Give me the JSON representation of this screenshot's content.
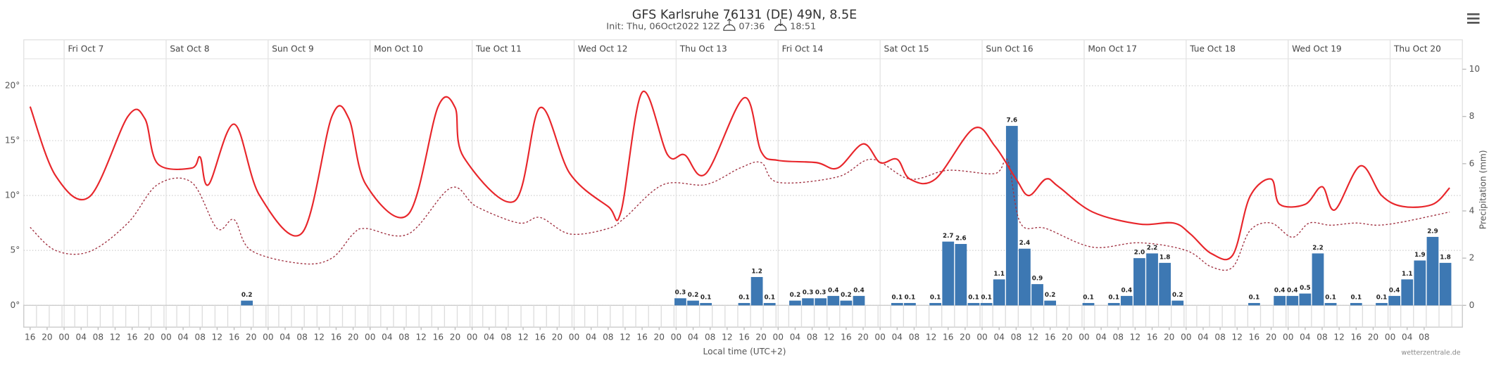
{
  "chart_data": {
    "type": "meteogram",
    "title": "GFS Karlsruhe 76131 (DE) 49N, 8.5E",
    "subtitle": "Init: Thu, 06Oct2022 12Z",
    "sunrise": "07:36",
    "sunset": "18:51",
    "xlabel": "Local time (UTC+2)",
    "y2label": "Precipitation (mm)",
    "credit": "wetterzentrale.de",
    "xlim": [
      -1.5,
      337
    ],
    "ylim": [
      0,
      21.5
    ],
    "yticks": [
      {
        "value": 0,
        "label": "0°"
      },
      {
        "value": 5,
        "label": "5°"
      },
      {
        "value": 10,
        "label": "10°"
      },
      {
        "value": 15,
        "label": "15°"
      },
      {
        "value": 20,
        "label": "20°"
      }
    ],
    "y2lim": [
      0,
      10
    ],
    "y2ticks": [
      0,
      2,
      4,
      6,
      8,
      10
    ],
    "grid": true,
    "day_labels": [
      "Fri Oct 7",
      "Sat Oct 8",
      "Sun Oct 9",
      "Mon Oct 10",
      "Tue Oct 11",
      "Wed Oct 12",
      "Thu Oct 13",
      "Fri Oct 14",
      "Sat Oct 15",
      "Sun Oct 16",
      "Mon Oct 17",
      "Tue Oct 18",
      "Wed Oct 19",
      "Thu Oct 20"
    ],
    "day_starts": [
      8,
      32,
      56,
      80,
      104,
      128,
      152,
      176,
      200,
      224,
      248,
      272,
      296,
      320
    ],
    "xticks": [
      {
        "value": 0,
        "label": "16"
      },
      {
        "value": 4,
        "label": "20"
      },
      {
        "value": 8,
        "label": "00"
      },
      {
        "value": 12,
        "label": "04"
      },
      {
        "value": 16,
        "label": "08"
      },
      {
        "value": 20,
        "label": "12"
      },
      {
        "value": 24,
        "label": "16"
      },
      {
        "value": 28,
        "label": "20"
      },
      {
        "value": 32,
        "label": "00"
      },
      {
        "value": 36,
        "label": "04"
      },
      {
        "value": 40,
        "label": "08"
      },
      {
        "value": 44,
        "label": "12"
      },
      {
        "value": 48,
        "label": "16"
      },
      {
        "value": 52,
        "label": "20"
      },
      {
        "value": 56,
        "label": "00"
      },
      {
        "value": 60,
        "label": "04"
      },
      {
        "value": 64,
        "label": "08"
      },
      {
        "value": 68,
        "label": "12"
      },
      {
        "value": 72,
        "label": "16"
      },
      {
        "value": 76,
        "label": "20"
      },
      {
        "value": 80,
        "label": "00"
      },
      {
        "value": 84,
        "label": "04"
      },
      {
        "value": 88,
        "label": "08"
      },
      {
        "value": 92,
        "label": "12"
      },
      {
        "value": 96,
        "label": "16"
      },
      {
        "value": 100,
        "label": "20"
      },
      {
        "value": 104,
        "label": "00"
      },
      {
        "value": 108,
        "label": "04"
      },
      {
        "value": 112,
        "label": "08"
      },
      {
        "value": 116,
        "label": "12"
      },
      {
        "value": 120,
        "label": "16"
      },
      {
        "value": 124,
        "label": "20"
      },
      {
        "value": 128,
        "label": "00"
      },
      {
        "value": 132,
        "label": "04"
      },
      {
        "value": 136,
        "label": "08"
      },
      {
        "value": 140,
        "label": "12"
      },
      {
        "value": 144,
        "label": "16"
      },
      {
        "value": 148,
        "label": "20"
      },
      {
        "value": 152,
        "label": "00"
      },
      {
        "value": 156,
        "label": "04"
      },
      {
        "value": 160,
        "label": "08"
      },
      {
        "value": 164,
        "label": "12"
      },
      {
        "value": 168,
        "label": "16"
      },
      {
        "value": 172,
        "label": "20"
      },
      {
        "value": 176,
        "label": "00"
      },
      {
        "value": 180,
        "label": "04"
      },
      {
        "value": 184,
        "label": "08"
      },
      {
        "value": 188,
        "label": "12"
      },
      {
        "value": 192,
        "label": "16"
      },
      {
        "value": 196,
        "label": "20"
      },
      {
        "value": 200,
        "label": "00"
      },
      {
        "value": 204,
        "label": "04"
      },
      {
        "value": 208,
        "label": "08"
      },
      {
        "value": 212,
        "label": "12"
      },
      {
        "value": 216,
        "label": "16"
      },
      {
        "value": 220,
        "label": "20"
      },
      {
        "value": 224,
        "label": "00"
      },
      {
        "value": 228,
        "label": "04"
      },
      {
        "value": 232,
        "label": "08"
      },
      {
        "value": 236,
        "label": "12"
      },
      {
        "value": 240,
        "label": "16"
      },
      {
        "value": 244,
        "label": "20"
      },
      {
        "value": 248,
        "label": "00"
      },
      {
        "value": 252,
        "label": "04"
      },
      {
        "value": 256,
        "label": "08"
      },
      {
        "value": 260,
        "label": "12"
      },
      {
        "value": 264,
        "label": "16"
      },
      {
        "value": 268,
        "label": "20"
      },
      {
        "value": 272,
        "label": "00"
      },
      {
        "value": 276,
        "label": "04"
      },
      {
        "value": 280,
        "label": "08"
      },
      {
        "value": 284,
        "label": "12"
      },
      {
        "value": 288,
        "label": "16"
      },
      {
        "value": 292,
        "label": "20"
      },
      {
        "value": 296,
        "label": "00"
      },
      {
        "value": 300,
        "label": "04"
      },
      {
        "value": 304,
        "label": "08"
      },
      {
        "value": 308,
        "label": "12"
      },
      {
        "value": 312,
        "label": "16"
      },
      {
        "value": 316,
        "label": "20"
      },
      {
        "value": 320,
        "label": "00"
      },
      {
        "value": 324,
        "label": "04"
      },
      {
        "value": 328,
        "label": "08"
      }
    ],
    "temperature": {
      "color": "#e8262b",
      "x": [
        0,
        6,
        14,
        23,
        27,
        30,
        38,
        40,
        42,
        48,
        54,
        64,
        71,
        75,
        79,
        89,
        96,
        100,
        102,
        114,
        120,
        127,
        136,
        139,
        144,
        150,
        154,
        159,
        168,
        172,
        176,
        185,
        190,
        196,
        200,
        204,
        207,
        213,
        222,
        227,
        232,
        235,
        239,
        242,
        250,
        261,
        269,
        273,
        278,
        283,
        287,
        292,
        294,
        300,
        304,
        307,
        313,
        318,
        323,
        330,
        334
      ],
      "values": [
        18.1,
        11.8,
        9.9,
        17.2,
        17.0,
        12.9,
        12.5,
        13.5,
        11,
        16.5,
        10,
        6.6,
        17.2,
        17,
        11,
        8.3,
        18.1,
        18,
        13.5,
        9.5,
        18.0,
        12,
        9,
        8.5,
        19.4,
        13.7,
        13.7,
        12,
        18.9,
        14,
        13.2,
        13,
        12.5,
        14.7,
        13,
        13.3,
        11.5,
        11.5,
        16.1,
        14.5,
        11.5,
        10,
        11.5,
        10.8,
        8.5,
        7.4,
        7.5,
        6.5,
        4.7,
        4.6,
        9.9,
        11.5,
        9.2,
        9.2,
        10.8,
        8.7,
        12.7,
        10,
        9.0,
        9.2,
        10.7
      ]
    },
    "dewpoint": {
      "color": "#a03040",
      "x": [
        0,
        6,
        14,
        23,
        30,
        38,
        44,
        48,
        52,
        64,
        71,
        76,
        79,
        89,
        99,
        105,
        115,
        120,
        127,
        136,
        140,
        149,
        159,
        167,
        172,
        176,
        190,
        198,
        207,
        216,
        227,
        230,
        233,
        239,
        250,
        261,
        272,
        278,
        283,
        287,
        292,
        297,
        301,
        306,
        312,
        317,
        323,
        334
      ],
      "values": [
        7.1,
        5.0,
        4.9,
        7.5,
        11,
        11.2,
        7,
        7.8,
        5,
        3.8,
        4.3,
        6.5,
        7,
        6.5,
        10.7,
        9,
        7.5,
        8,
        6.5,
        7,
        8,
        11,
        11,
        12.5,
        13,
        11.2,
        11.7,
        13.3,
        11.5,
        12.3,
        12,
        13.2,
        7.5,
        7,
        5.3,
        5.7,
        5,
        3.5,
        3.5,
        6.8,
        7.5,
        6.2,
        7.5,
        7.3,
        7.5,
        7.3,
        7.6,
        8.5
      ]
    },
    "precipitation": {
      "color": "#3d78b3",
      "axis": "y2",
      "x": [
        51,
        153,
        156,
        159,
        168,
        171,
        174,
        180,
        183,
        186,
        189,
        192,
        195,
        204,
        207,
        213,
        216,
        219,
        222,
        225,
        228,
        231,
        234,
        237,
        240,
        249,
        255,
        258,
        261,
        264,
        267,
        270,
        288,
        294,
        297,
        300,
        303,
        306,
        312,
        318,
        321,
        324,
        327,
        330,
        333
      ],
      "values": [
        0.2,
        0.3,
        0.2,
        0.1,
        0.1,
        1.2,
        0.1,
        0.2,
        0.3,
        0.3,
        0.4,
        0.2,
        0.4,
        0.1,
        0.1,
        0.1,
        2.7,
        2.6,
        0.1,
        0.1,
        1.1,
        7.6,
        2.4,
        0.9,
        0.2,
        0.1,
        0.1,
        0.4,
        2.0,
        2.2,
        1.8,
        0.2,
        0.1,
        0.4,
        0.4,
        0.5,
        2.2,
        0.1,
        0.1,
        0.1,
        0.4,
        1.1,
        1.9,
        2.9,
        1.8
      ],
      "value_labels": [
        "0.2",
        "0.3",
        "0.2",
        "0.1",
        "0.1",
        "1.2",
        "0.1",
        "0.2",
        "0.3",
        "0.3",
        "0.4",
        "0.2",
        "0.4",
        "0.1",
        "0.1",
        "0.1",
        "2.7",
        "2.6",
        "0.1",
        "0.1",
        "1.1",
        "7.6",
        "2.4",
        "0.9",
        "0.2",
        "0.1",
        "0.1",
        "0.4",
        "2.0",
        "2.2",
        "1.8",
        "0.2",
        "0.1",
        "0.4",
        "0.4",
        "0.5",
        "2.2",
        "0.1",
        "0.1",
        "0.1",
        "0.4",
        "1.1",
        "1.9",
        "2.9",
        "1.8"
      ]
    }
  }
}
